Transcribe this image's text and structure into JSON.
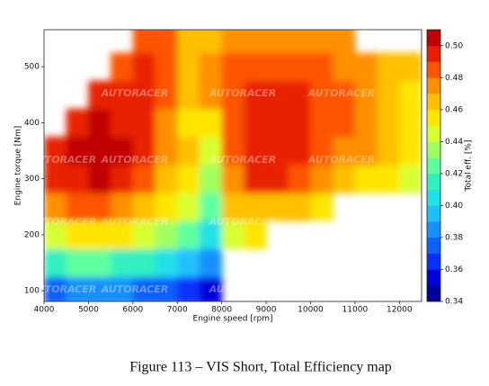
{
  "chart_data": {
    "type": "contour",
    "xlabel": "Engine speed [rpm]",
    "ylabel": "Engine torque [Nm]",
    "colorbar_label": "Total eff. [%]",
    "caption": "Figure 113 – VIS Short, Total Efficiency map",
    "watermark": "AUTORACER",
    "xlim": [
      4000,
      12500
    ],
    "ylim": [
      81,
      566
    ],
    "xticks": [
      4000,
      5000,
      6000,
      7000,
      8000,
      9000,
      10000,
      11000,
      12000
    ],
    "yticks": [
      100,
      200,
      300,
      400,
      500
    ],
    "clim": [
      0.34,
      0.51
    ],
    "cticks": [
      0.34,
      0.36,
      0.38,
      {
        "value": 0.4,
        "label": "0.40"
      },
      0.42,
      0.44,
      0.46,
      0.48,
      {
        "value": 0.5,
        "label": "0.50"
      }
    ],
    "levels": [
      0.34,
      0.35,
      0.36,
      0.37,
      0.38,
      0.39,
      0.4,
      0.41,
      0.42,
      0.43,
      0.44,
      0.45,
      0.46,
      0.47,
      0.48,
      0.49,
      0.5,
      0.51
    ],
    "colors": [
      "#00009a",
      "#0000d8",
      "#0a30ff",
      "#1060ff",
      "#1890ff",
      "#20c0ff",
      "#20e0e8",
      "#30f0c0",
      "#60ffa0",
      "#a0ff60",
      "#d8ff30",
      "#ffe600",
      "#ffc000",
      "#ff9000",
      "#ff5500",
      "#e82000",
      "#c00000"
    ],
    "x": [
      4250,
      4750,
      5250,
      5750,
      6250,
      6750,
      7250,
      7750,
      8250,
      8750,
      9250,
      9750,
      10250,
      10750,
      11250,
      11750,
      12250
    ],
    "y": [
      100,
      150,
      200,
      250,
      300,
      350,
      400,
      450,
      500,
      550
    ],
    "z": [
      [
        0.37,
        0.38,
        0.38,
        0.38,
        0.37,
        0.37,
        0.36,
        0.35,
        null,
        null,
        null,
        null,
        null,
        null,
        null,
        null,
        null
      ],
      [
        0.41,
        0.42,
        0.42,
        0.41,
        0.41,
        0.4,
        0.39,
        0.38,
        null,
        null,
        null,
        null,
        null,
        null,
        null,
        null,
        null
      ],
      [
        0.44,
        0.45,
        0.45,
        0.45,
        0.44,
        0.43,
        0.42,
        0.4,
        0.44,
        0.45,
        null,
        null,
        null,
        null,
        null,
        null,
        null
      ],
      [
        0.47,
        0.48,
        0.48,
        0.47,
        0.46,
        0.45,
        0.44,
        0.42,
        0.46,
        0.46,
        0.46,
        0.46,
        0.45,
        null,
        null,
        null,
        null
      ],
      [
        0.49,
        0.49,
        0.5,
        0.49,
        0.48,
        0.46,
        0.45,
        0.43,
        0.47,
        0.49,
        0.49,
        0.48,
        0.47,
        0.46,
        0.45,
        0.45,
        0.44
      ],
      [
        0.49,
        0.5,
        0.5,
        0.5,
        0.49,
        0.47,
        0.46,
        0.44,
        0.48,
        0.49,
        0.49,
        0.49,
        0.48,
        0.47,
        0.47,
        0.46,
        0.45
      ],
      [
        null,
        0.49,
        0.5,
        0.49,
        0.49,
        0.47,
        0.45,
        0.45,
        0.48,
        0.49,
        0.49,
        0.49,
        0.48,
        0.48,
        0.47,
        0.46,
        0.45
      ],
      [
        null,
        null,
        0.49,
        0.49,
        0.49,
        0.48,
        0.46,
        0.47,
        0.48,
        0.49,
        0.49,
        0.49,
        0.48,
        0.48,
        0.47,
        0.46,
        0.45
      ],
      [
        null,
        null,
        null,
        0.48,
        0.49,
        0.48,
        0.46,
        0.47,
        0.48,
        0.48,
        0.48,
        0.48,
        0.48,
        0.47,
        0.47,
        0.46,
        0.46
      ],
      [
        null,
        null,
        null,
        null,
        0.48,
        0.48,
        0.46,
        0.46,
        0.47,
        0.47,
        0.47,
        0.47,
        0.47,
        0.47,
        null,
        null,
        null
      ]
    ]
  }
}
